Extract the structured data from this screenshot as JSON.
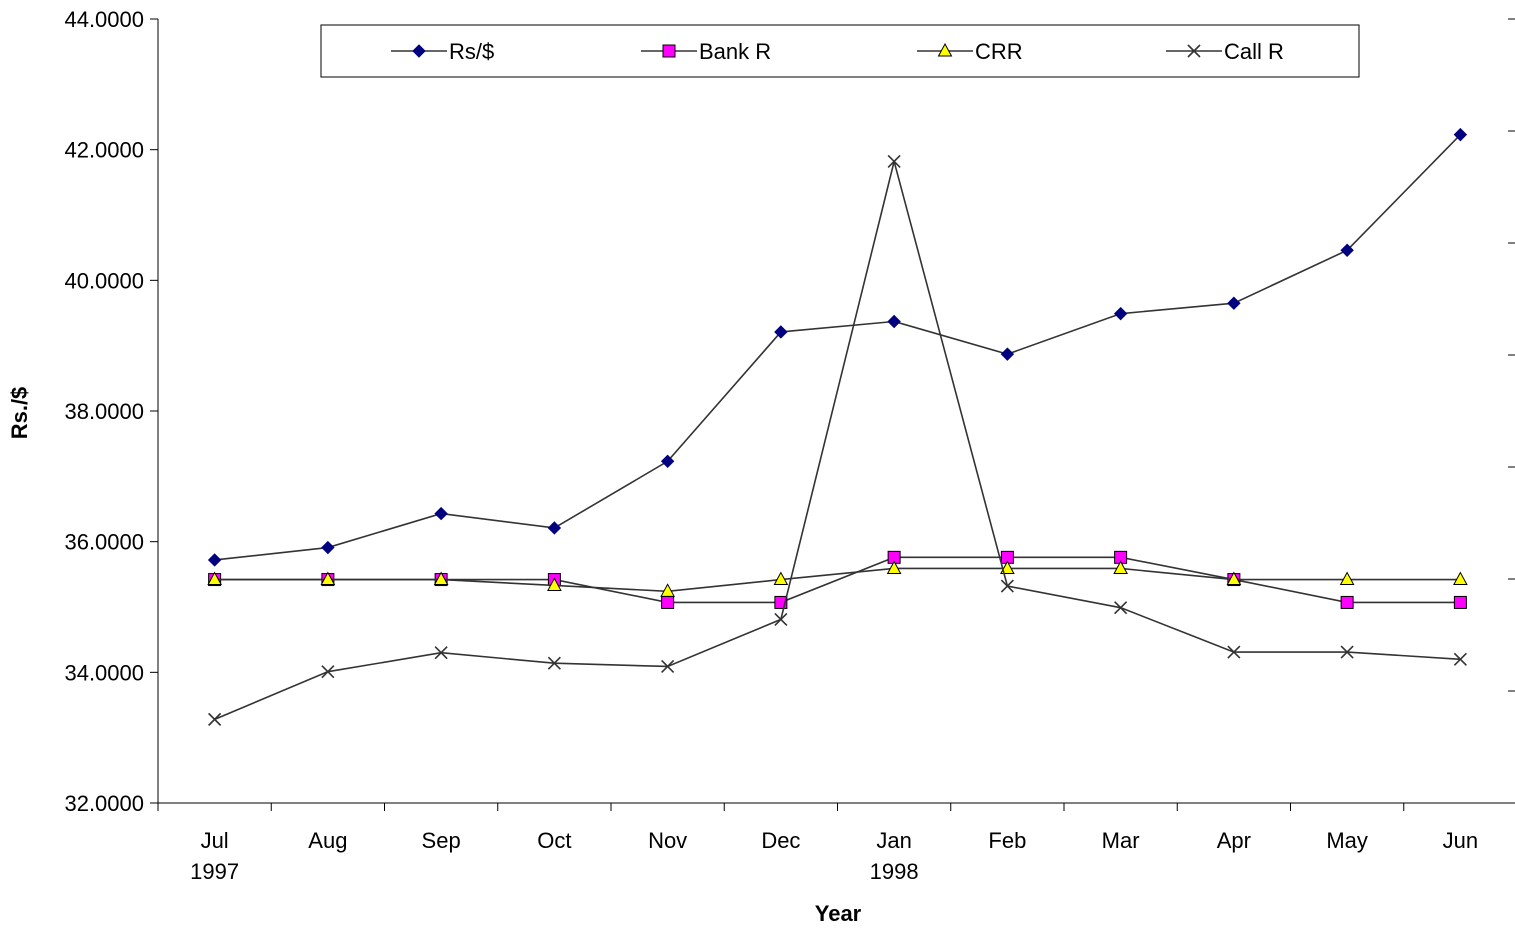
{
  "chart_data": {
    "type": "line",
    "title": "",
    "xlabel": "Year",
    "ylabel": "Rs./$",
    "categories": [
      "Jul",
      "Aug",
      "Sep",
      "Oct",
      "Nov",
      "Dec",
      "Jan",
      "Feb",
      "Mar",
      "Apr",
      "May",
      "Jun"
    ],
    "category_sublabels": [
      "1997",
      "",
      "",
      "",
      "",
      "",
      "1998",
      "",
      "",
      "",
      "",
      ""
    ],
    "ylim": [
      32,
      44
    ],
    "y_ticks": [
      "32.0000",
      "34.0000",
      "36.0000",
      "38.0000",
      "40.0000",
      "42.0000",
      "44.0000"
    ],
    "grid": false,
    "legend_position": "top",
    "series": [
      {
        "name": "Rs/$",
        "marker": "diamond",
        "color": "#000080",
        "values": [
          35.72,
          35.91,
          36.43,
          36.21,
          37.23,
          39.21,
          39.37,
          38.87,
          39.49,
          39.65,
          40.46,
          42.23
        ]
      },
      {
        "name": "Bank R",
        "marker": "square",
        "color": "#FF00FF",
        "values": [
          35.42,
          35.42,
          35.42,
          35.42,
          35.07,
          35.07,
          35.76,
          35.76,
          35.76,
          35.42,
          35.07,
          35.07
        ]
      },
      {
        "name": "CRR",
        "marker": "triangle",
        "color": "#FFFF00",
        "values": [
          35.42,
          35.42,
          35.42,
          35.33,
          35.24,
          35.42,
          35.59,
          35.59,
          35.59,
          35.42,
          35.42,
          35.42
        ]
      },
      {
        "name": "Call R",
        "marker": "x",
        "color": "#333333",
        "values": [
          33.28,
          34.01,
          34.3,
          34.14,
          34.09,
          34.81,
          41.82,
          35.32,
          34.99,
          34.31,
          34.31,
          34.2
        ]
      }
    ]
  }
}
